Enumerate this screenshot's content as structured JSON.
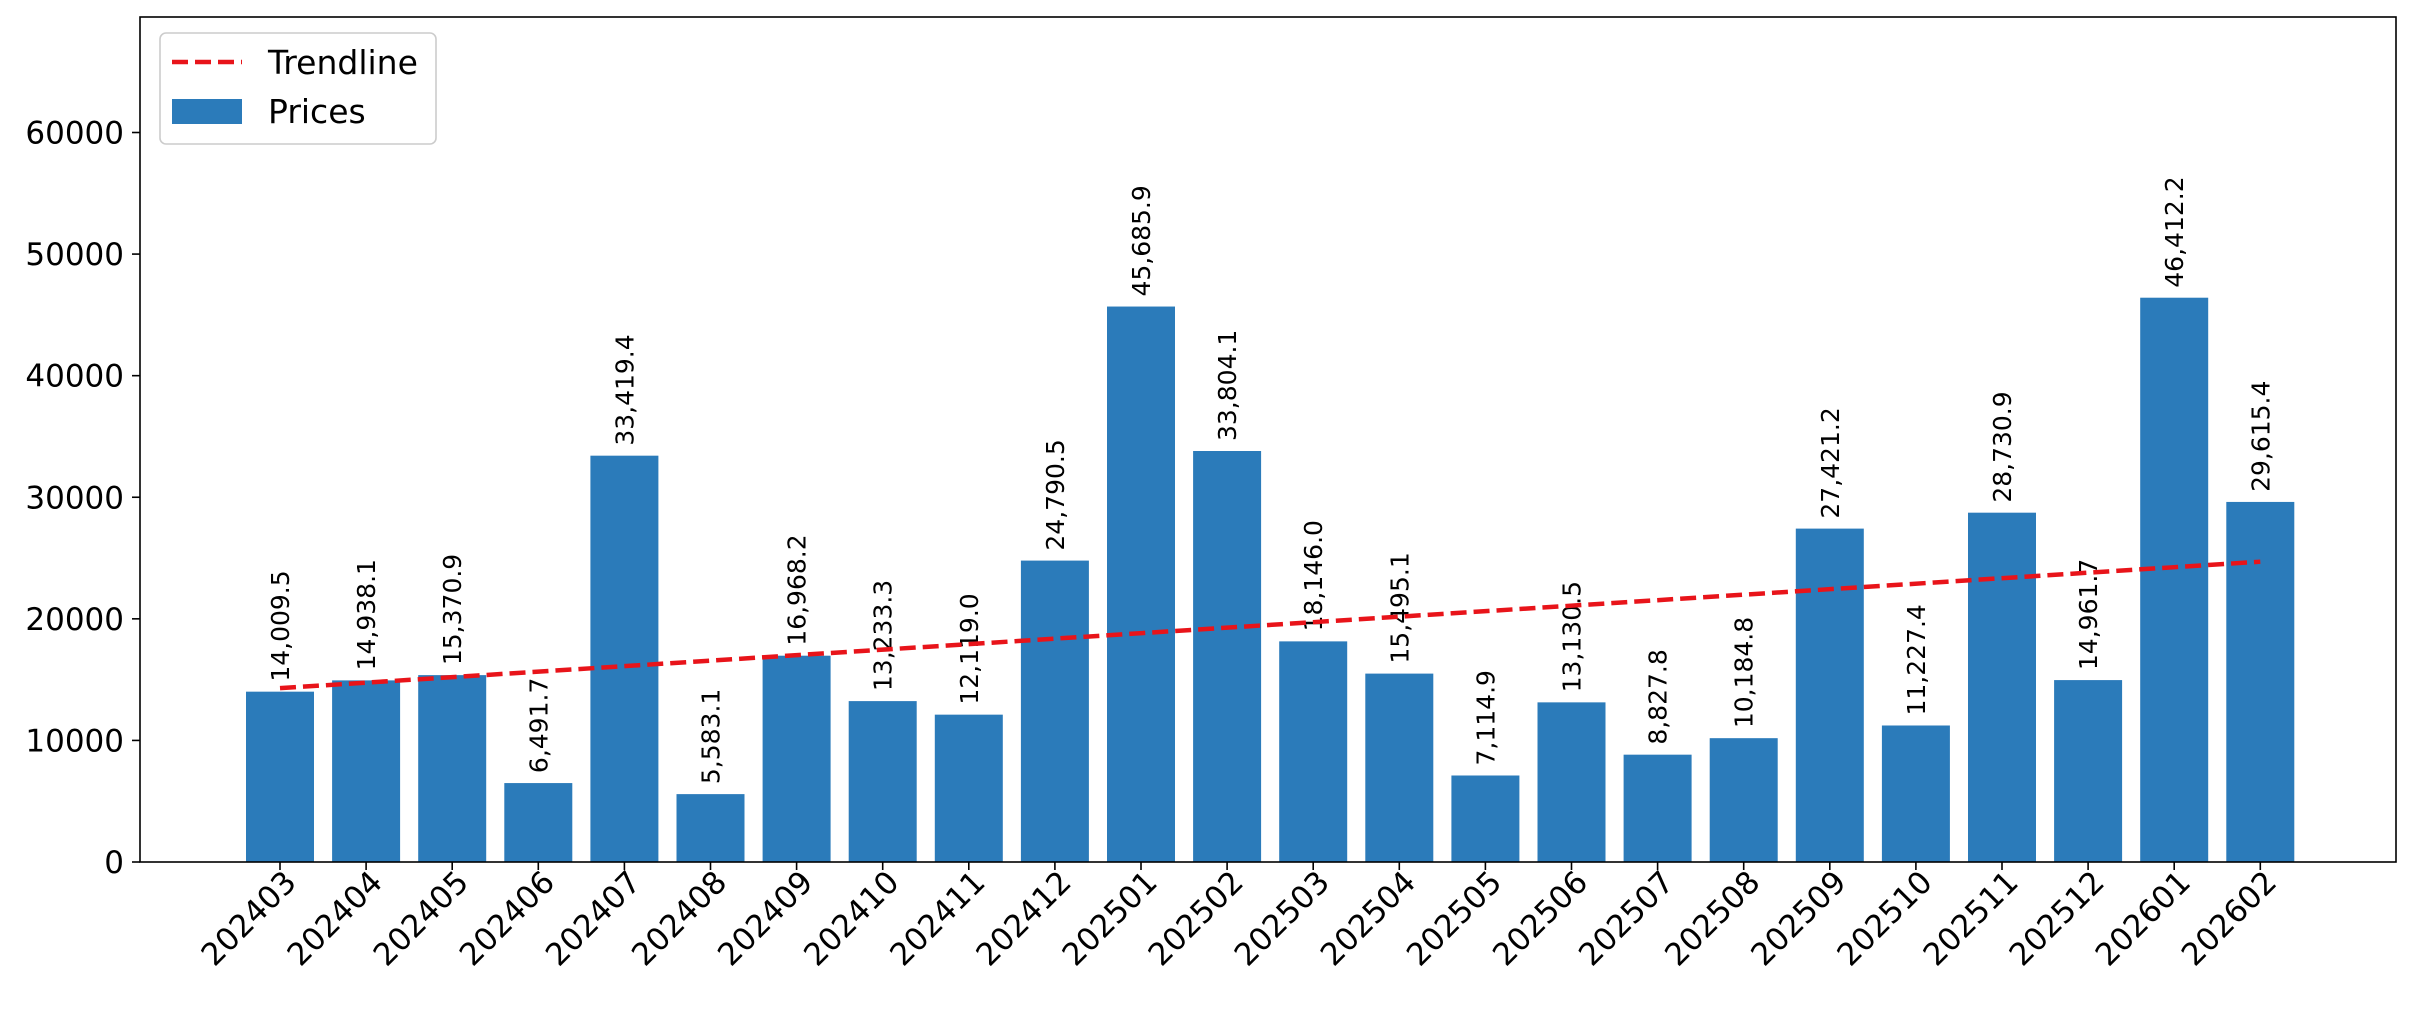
{
  "chart_data": {
    "type": "bar",
    "categories": [
      "202403",
      "202404",
      "202405",
      "202406",
      "202407",
      "202408",
      "202409",
      "202410",
      "202411",
      "202412",
      "202501",
      "202502",
      "202503",
      "202504",
      "202505",
      "202506",
      "202507",
      "202508",
      "202509",
      "202510",
      "202511",
      "202512",
      "202601",
      "202602"
    ],
    "series": [
      {
        "name": "Prices",
        "values": [
          14009.5,
          14938.1,
          15370.9,
          6491.7,
          33419.4,
          5583.1,
          16968.2,
          13233.3,
          12119.0,
          24790.5,
          45685.9,
          33804.1,
          18146.0,
          15495.1,
          7114.9,
          13130.5,
          8827.8,
          10184.8,
          27421.2,
          11227.4,
          28730.9,
          14961.7,
          46412.2,
          29615.4
        ],
        "labels": [
          "14,009.5",
          "14,938.1",
          "15,370.9",
          "6,491.7",
          "33,419.4",
          "5,583.1",
          "16,968.2",
          "13,233.3",
          "12,119.0",
          "24,790.5",
          "45,685.9",
          "33,804.1",
          "18,146.0",
          "15,495.1",
          "7,114.9",
          "13,130.5",
          "8,827.8",
          "10,184.8",
          "27,421.2",
          "11,227.4",
          "28,730.9",
          "14,961.7",
          "46,412.2",
          "29,615.4"
        ]
      }
    ],
    "trendline": {
      "name": "Trendline",
      "start": 14300,
      "end": 24700
    },
    "ylim": [
      0,
      69500
    ],
    "yticks": [
      0,
      10000,
      20000,
      30000,
      40000,
      50000,
      60000
    ],
    "legend": "top-left",
    "grid": false,
    "colors": {
      "bar": "#2b7bba",
      "trendline": "#e8141a"
    }
  }
}
